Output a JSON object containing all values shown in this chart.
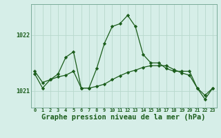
{
  "title": "Graphe pression niveau de la mer (hPa)",
  "bg_color": "#d6eee8",
  "line_color": "#1a5c1a",
  "grid_color": "#b8d8cc",
  "x_hours": [
    0,
    1,
    2,
    3,
    4,
    5,
    6,
    7,
    8,
    9,
    10,
    11,
    12,
    13,
    14,
    15,
    16,
    17,
    18,
    19,
    20,
    21,
    22,
    23
  ],
  "line1_y": [
    1021.3,
    1021.05,
    1021.2,
    1021.3,
    1021.6,
    1021.7,
    1021.05,
    1021.05,
    1021.4,
    1021.85,
    1022.15,
    1022.2,
    1022.35,
    1022.15,
    1021.65,
    1021.5,
    1021.5,
    1021.4,
    1021.35,
    1021.35,
    1021.35,
    1021.05,
    1020.85,
    1021.05
  ],
  "line2_y": [
    1021.35,
    1021.15,
    1021.2,
    1021.25,
    1021.28,
    1021.35,
    1021.05,
    1021.05,
    1021.08,
    1021.12,
    1021.2,
    1021.27,
    1021.33,
    1021.37,
    1021.42,
    1021.45,
    1021.45,
    1021.45,
    1021.38,
    1021.32,
    1021.28,
    1021.05,
    1020.92,
    1021.05
  ],
  "ylim": [
    1020.7,
    1022.55
  ],
  "yticks": [
    1021,
    1022
  ],
  "ytick_labels": [
    "1021",
    "1022"
  ],
  "title_fontsize": 7.5
}
